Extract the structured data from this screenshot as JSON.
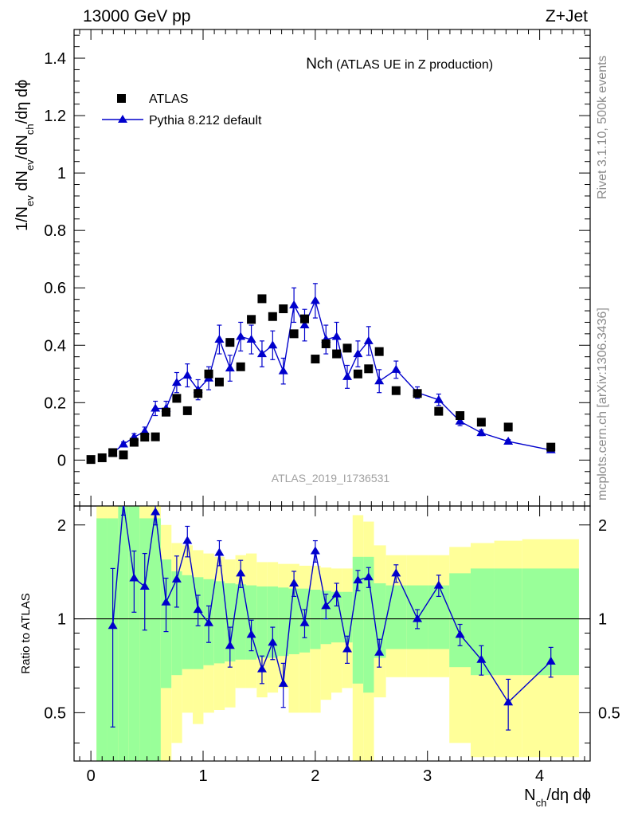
{
  "header": {
    "energy_label": "13000 GeV pp",
    "process_label": "Z+Jet"
  },
  "side_labels": {
    "rivet": "Rivet 3.1.10,  500k events",
    "mcplots": "mcplots.cern.ch [arXiv:1306.3436]"
  },
  "colors": {
    "mc": "#0000cc",
    "data": "#000000",
    "band_inner": "#99ff99",
    "band_outer": "#ffff99",
    "analysis_text": "#a0a0a0"
  },
  "chart_data": [
    {
      "type": "scatter",
      "panel": "main",
      "title": "Nch",
      "subtitle": "(ATLAS UE in Z production)",
      "analysis_id": "ATLAS_2019_I1736531",
      "xlabel": "N_ch/dη dϕ",
      "ylabel": "1/N_ev dN_ev/dN_ch/dη dϕ",
      "xlim": [
        -0.15,
        4.45
      ],
      "ylim": [
        -0.16,
        1.5
      ],
      "y_ticks": [
        0,
        0.2,
        0.4,
        0.6,
        0.8,
        1,
        1.2,
        1.4
      ],
      "y_tick_labels": [
        "0",
        "0.2",
        "0.4",
        "0.6",
        "0.8",
        "1",
        "1.2",
        "1.4"
      ],
      "legend": [
        "ATLAS",
        "Pythia 8.212 default"
      ],
      "legend_position": "top-left",
      "series": [
        {
          "name": "ATLAS",
          "marker": "square",
          "x": [
            0.0,
            0.1,
            0.195,
            0.29,
            0.385,
            0.48,
            0.575,
            0.67,
            0.765,
            0.86,
            0.955,
            1.05,
            1.145,
            1.24,
            1.335,
            1.43,
            1.525,
            1.62,
            1.715,
            1.81,
            1.905,
            2.0,
            2.095,
            2.19,
            2.285,
            2.38,
            2.475,
            2.57,
            2.72,
            2.91,
            3.1,
            3.29,
            3.48,
            3.72,
            4.1
          ],
          "y": [
            0.002,
            0.008,
            0.026,
            0.018,
            0.062,
            0.08,
            0.081,
            0.167,
            0.215,
            0.172,
            0.232,
            0.3,
            0.272,
            0.41,
            0.325,
            0.49,
            0.562,
            0.5,
            0.527,
            0.44,
            0.492,
            0.352,
            0.405,
            0.37,
            0.39,
            0.3,
            0.318,
            0.378,
            0.242,
            0.232,
            0.17,
            0.155,
            0.132,
            0.115,
            0.045
          ]
        },
        {
          "name": "Pythia 8.212 default",
          "marker": "triangle",
          "x": [
            0.195,
            0.29,
            0.385,
            0.48,
            0.575,
            0.67,
            0.765,
            0.86,
            0.955,
            1.05,
            1.145,
            1.24,
            1.335,
            1.43,
            1.525,
            1.62,
            1.715,
            1.81,
            1.905,
            2.0,
            2.095,
            2.19,
            2.285,
            2.38,
            2.475,
            2.57,
            2.72,
            2.91,
            3.1,
            3.29,
            3.48,
            3.72,
            4.1
          ],
          "y": [
            0.025,
            0.055,
            0.08,
            0.1,
            0.18,
            0.18,
            0.27,
            0.295,
            0.245,
            0.285,
            0.42,
            0.32,
            0.43,
            0.42,
            0.37,
            0.4,
            0.31,
            0.54,
            0.47,
            0.555,
            0.42,
            0.43,
            0.29,
            0.37,
            0.415,
            0.275,
            0.315,
            0.235,
            0.21,
            0.135,
            0.095,
            0.065,
            0.035
          ],
          "yerr": [
            0.004,
            0.008,
            0.012,
            0.015,
            0.025,
            0.025,
            0.035,
            0.04,
            0.035,
            0.04,
            0.05,
            0.045,
            0.05,
            0.05,
            0.045,
            0.05,
            0.045,
            0.06,
            0.055,
            0.06,
            0.05,
            0.05,
            0.04,
            0.045,
            0.05,
            0.04,
            0.03,
            0.02,
            0.02,
            0.015,
            0.01,
            0.006,
            0.004
          ]
        }
      ]
    },
    {
      "type": "scatter",
      "panel": "ratio",
      "ylabel": "Ratio to ATLAS",
      "xlabel": "N_ch/dη dϕ",
      "xlim": [
        -0.15,
        4.45
      ],
      "ylim": [
        0.35,
        2.3
      ],
      "reference_line": 1.0,
      "x_ticks": [
        0,
        1,
        2,
        3,
        4
      ],
      "x_tick_labels": [
        "0",
        "1",
        "2",
        "3",
        "4"
      ],
      "y_ticks": [
        0.5,
        1,
        2
      ],
      "y_tick_labels": [
        "0.5",
        "1",
        "2"
      ],
      "uncertainty_bands": {
        "bin_edges": [
          0.05,
          0.148,
          0.243,
          0.338,
          0.433,
          0.528,
          0.623,
          0.718,
          0.813,
          0.908,
          1.003,
          1.098,
          1.193,
          1.288,
          1.383,
          1.478,
          1.573,
          1.668,
          1.763,
          1.858,
          1.953,
          2.048,
          2.143,
          2.238,
          2.333,
          2.428,
          2.523,
          2.63,
          2.815,
          3.005,
          3.195,
          3.385,
          3.595,
          3.845,
          4.35
        ],
        "inner_low": [
          0.33,
          0.33,
          0.33,
          0.33,
          0.33,
          0.33,
          0.6,
          0.66,
          0.69,
          0.69,
          0.71,
          0.72,
          0.73,
          0.74,
          0.74,
          0.75,
          0.75,
          0.76,
          0.77,
          0.78,
          0.8,
          0.83,
          0.84,
          0.84,
          0.62,
          0.58,
          0.75,
          0.8,
          0.8,
          0.8,
          0.7,
          0.66,
          0.66,
          0.66
        ],
        "inner_high": [
          2.1,
          2.1,
          2.3,
          2.3,
          2.1,
          2.1,
          1.55,
          1.42,
          1.38,
          1.36,
          1.34,
          1.32,
          1.3,
          1.29,
          1.28,
          1.27,
          1.27,
          1.26,
          1.25,
          1.25,
          1.24,
          1.23,
          1.22,
          1.22,
          1.58,
          1.58,
          1.3,
          1.28,
          1.28,
          1.28,
          1.4,
          1.45,
          1.45,
          1.45
        ],
        "outer_low": [
          0.33,
          0.33,
          0.33,
          0.33,
          0.33,
          0.33,
          0.35,
          0.4,
          0.5,
          0.46,
          0.5,
          0.51,
          0.52,
          0.6,
          0.6,
          0.56,
          0.58,
          0.6,
          0.5,
          0.5,
          0.5,
          0.55,
          0.58,
          0.6,
          0.33,
          0.33,
          0.56,
          0.65,
          0.65,
          0.65,
          0.4,
          0.36,
          0.36,
          0.36
        ],
        "outer_high": [
          2.3,
          2.3,
          2.3,
          2.3,
          2.3,
          2.3,
          2.0,
          1.75,
          1.72,
          1.66,
          1.62,
          1.58,
          1.55,
          1.6,
          1.62,
          1.52,
          1.52,
          1.5,
          1.5,
          1.48,
          1.48,
          1.46,
          1.45,
          1.45,
          2.15,
          2.05,
          1.72,
          1.6,
          1.6,
          1.6,
          1.7,
          1.75,
          1.78,
          1.8
        ]
      },
      "series": [
        {
          "name": "Pythia 8.212 default",
          "x": [
            0.195,
            0.29,
            0.385,
            0.48,
            0.575,
            0.67,
            0.765,
            0.86,
            0.955,
            1.05,
            1.145,
            1.24,
            1.335,
            1.43,
            1.525,
            1.62,
            1.715,
            1.81,
            1.905,
            2.0,
            2.095,
            2.19,
            2.285,
            2.38,
            2.475,
            2.57,
            2.72,
            2.91,
            3.1,
            3.29,
            3.48,
            3.72,
            4.1
          ],
          "y": [
            0.95,
            2.35,
            1.35,
            1.27,
            2.2,
            1.13,
            1.34,
            1.78,
            1.07,
            0.97,
            1.63,
            0.82,
            1.4,
            0.89,
            0.69,
            0.84,
            0.62,
            1.3,
            0.97,
            1.65,
            1.1,
            1.2,
            0.8,
            1.33,
            1.36,
            0.78,
            1.4,
            1.0,
            1.28,
            0.89,
            0.74,
            0.54,
            0.73
          ],
          "yerr": [
            0.5,
            0.2,
            0.3,
            0.35,
            0.2,
            0.22,
            0.25,
            0.2,
            0.12,
            0.13,
            0.15,
            0.12,
            0.14,
            0.1,
            0.07,
            0.1,
            0.1,
            0.12,
            0.1,
            0.13,
            0.1,
            0.1,
            0.08,
            0.1,
            0.1,
            0.08,
            0.09,
            0.07,
            0.1,
            0.07,
            0.08,
            0.1,
            0.08
          ]
        }
      ]
    }
  ]
}
